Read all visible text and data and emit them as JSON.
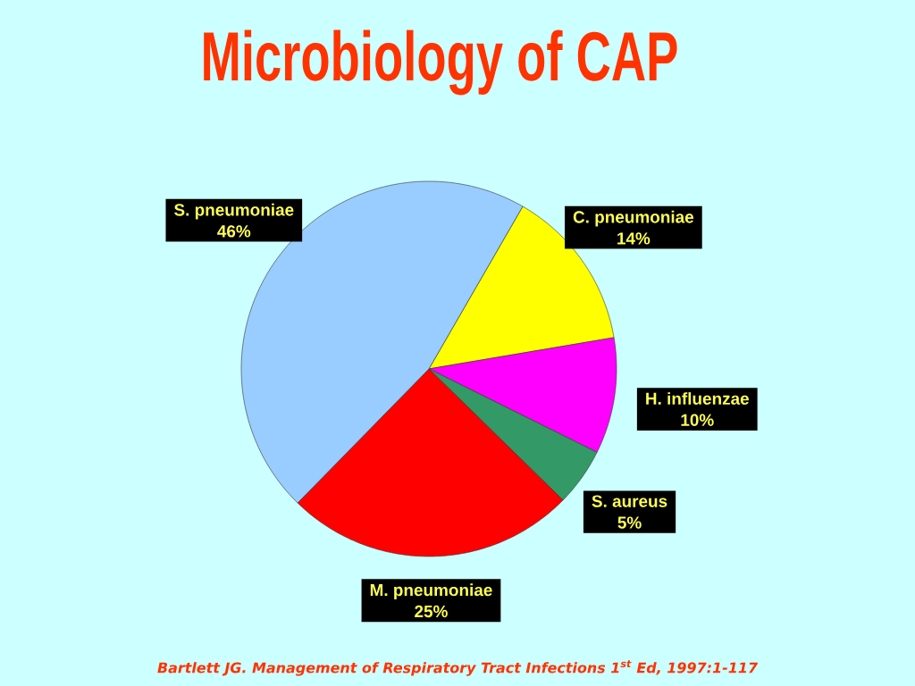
{
  "chart_data": {
    "type": "pie",
    "title": "Microbiology of CAP",
    "categories": [
      "C. pneumoniae",
      "H. influenzae",
      "S. aureus",
      "M. pneumoniae",
      "S. pneumoniae"
    ],
    "values": [
      14,
      10,
      5,
      25,
      46
    ],
    "colors": [
      "#ffff00",
      "#ff00ff",
      "#339966",
      "#ff0000",
      "#99ccff"
    ],
    "value_labels": [
      "14%",
      "10%",
      "5%",
      "25%",
      "46%"
    ],
    "annotations": [
      "Bartlett JG. Management of Respiratory Tract Infections 1$^{st}$ Ed, 1997:1-117"
    ]
  }
}
